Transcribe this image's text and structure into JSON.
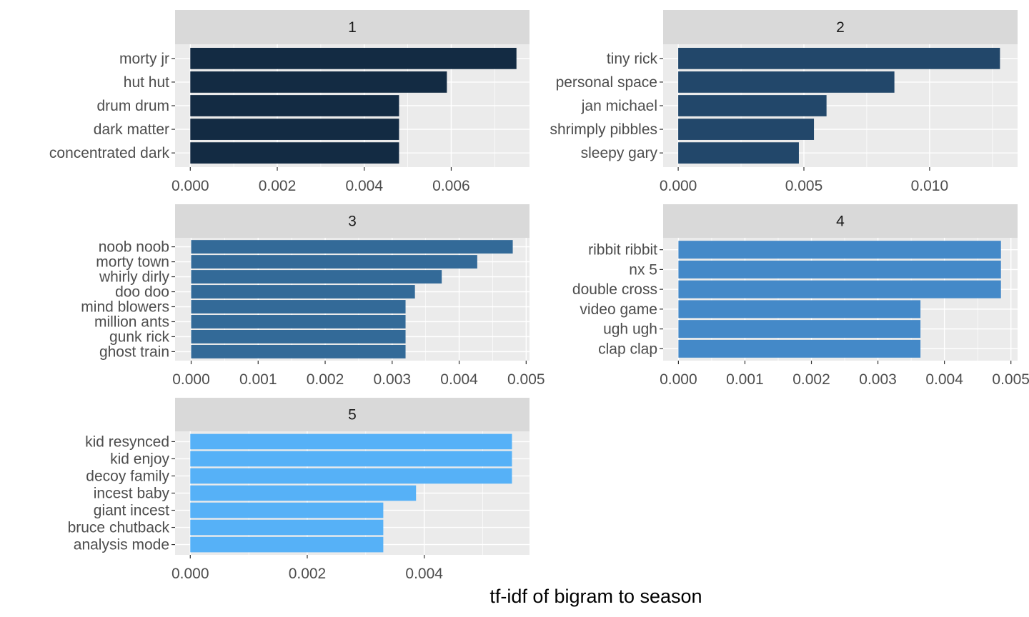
{
  "chart_data": {
    "type": "bar",
    "orientation": "horizontal",
    "facet_layout": "wrap",
    "xlabel": "tf-idf of bigram to season",
    "ylabel": "",
    "grid": true,
    "legend": "none",
    "panels": [
      {
        "title": "1",
        "color": "#132B43",
        "categories": [
          "morty jr",
          "hut hut",
          "drum drum",
          "dark matter",
          "concentrated dark"
        ],
        "values": [
          0.0075,
          0.0059,
          0.0048,
          0.0048,
          0.0048
        ],
        "xlim": [
          -0.00035,
          0.0078
        ],
        "ticks": [
          0,
          0.002,
          0.004,
          0.006
        ],
        "tick_labels": [
          "0.000",
          "0.002",
          "0.004",
          "0.006"
        ]
      },
      {
        "title": "2",
        "color": "#22476A",
        "categories": [
          "tiny rick",
          "personal space",
          "jan michael",
          "shrimply pibbles",
          "sleepy gary"
        ],
        "values": [
          0.0128,
          0.0086,
          0.0059,
          0.0054,
          0.0048
        ],
        "xlim": [
          -0.0006,
          0.0135
        ],
        "ticks": [
          0,
          0.005,
          0.01
        ],
        "tick_labels": [
          "0.000",
          "0.005",
          "0.010"
        ]
      },
      {
        "title": "3",
        "color": "#336A98",
        "categories": [
          "noob noob",
          "morty town",
          "whirly dirly",
          "doo doo",
          "mind blowers",
          "million ants",
          "gunk rick",
          "ghost train"
        ],
        "values": [
          0.0048,
          0.00427,
          0.00374,
          0.00334,
          0.0032,
          0.0032,
          0.0032,
          0.0032
        ],
        "xlim": [
          -0.00024,
          0.00505
        ],
        "ticks": [
          0,
          0.001,
          0.002,
          0.003,
          0.004,
          0.005
        ],
        "tick_labels": [
          "0.000",
          "0.001",
          "0.002",
          "0.003",
          "0.004",
          "0.005"
        ]
      },
      {
        "title": "4",
        "color": "#4489C8",
        "categories": [
          "ribbit ribbit",
          "nx 5",
          "double cross",
          "video game",
          "ugh ugh",
          "clap clap"
        ],
        "values": [
          0.00485,
          0.00485,
          0.00485,
          0.00364,
          0.00364,
          0.00364
        ],
        "xlim": [
          -0.00023,
          0.0051
        ],
        "ticks": [
          0,
          0.001,
          0.002,
          0.003,
          0.004,
          0.005
        ],
        "tick_labels": [
          "0.000",
          "0.001",
          "0.002",
          "0.003",
          "0.004",
          "0.005"
        ]
      },
      {
        "title": "5",
        "color": "#56B1F7",
        "categories": [
          "kid resynced",
          "kid enjoy",
          "decoy family",
          "incest baby",
          "giant incest",
          "bruce chutback",
          "analysis mode"
        ],
        "values": [
          0.0055,
          0.0055,
          0.0055,
          0.00386,
          0.0033,
          0.0033,
          0.0033
        ],
        "xlim": [
          -0.00026,
          0.0058
        ],
        "ticks": [
          0,
          0.002,
          0.004
        ],
        "tick_labels": [
          "0.000",
          "0.002",
          "0.004"
        ]
      }
    ]
  }
}
